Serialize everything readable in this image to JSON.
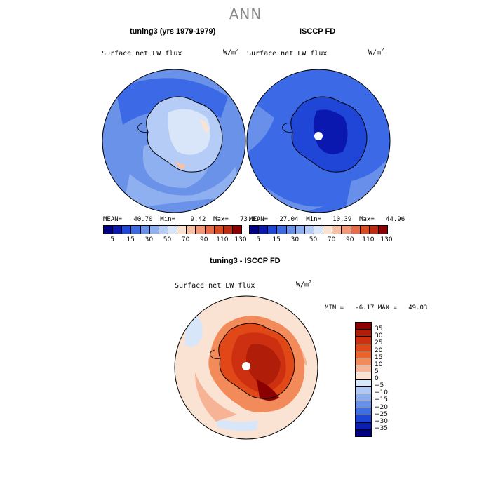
{
  "title": "ANN",
  "panels": [
    {
      "title": "tuning3 (yrs 1979-1979)",
      "variable": "Surface net LW flux",
      "units_base": "W/m",
      "units_exp": "2",
      "stats": "MEAN=   40.70  Min=    9.42  Max=   73.31"
    },
    {
      "title": "ISCCP FD",
      "variable": "Surface net LW flux",
      "units_base": "W/m",
      "units_exp": "2",
      "stats": "MEAN=   27.04  Min=   10.39  Max=   44.96"
    }
  ],
  "diff_panel": {
    "title": "tuning3 - ISCCP FD",
    "variable": "Surface net LW flux",
    "units_base": "W/m",
    "units_exp": "2",
    "stats": "MIN =   -6.17 MAX =   49.03"
  },
  "colorbar_top": {
    "tick_labels": [
      "5",
      "15",
      "30",
      "50",
      "70",
      "90",
      "110",
      "130"
    ],
    "colors": [
      "#000080",
      "#0a18b0",
      "#1f46d6",
      "#3c6ae6",
      "#6890ea",
      "#8fb0f0",
      "#b4ccf6",
      "#d9e6fa",
      "#fbe3d4",
      "#f7c1a8",
      "#f2967a",
      "#ea6a48",
      "#d84a22",
      "#c02a10",
      "#8b0000"
    ]
  },
  "colorbar_diff": {
    "tick_labels": [
      "35",
      "30",
      "25",
      "20",
      "15",
      "10",
      "5",
      "0",
      "−5",
      "−10",
      "−15",
      "−20",
      "−25",
      "−30",
      "−35"
    ],
    "colors": [
      "#8b0000",
      "#b01e0a",
      "#cc3010",
      "#e04818",
      "#ec6428",
      "#f28a5a",
      "#f7b396",
      "#fbe3d4",
      "#d8e6fa",
      "#b0c8f4",
      "#8cacee",
      "#6690ea",
      "#3e6ee4",
      "#1e46d4",
      "#0a1eb0",
      "#000080"
    ]
  }
}
